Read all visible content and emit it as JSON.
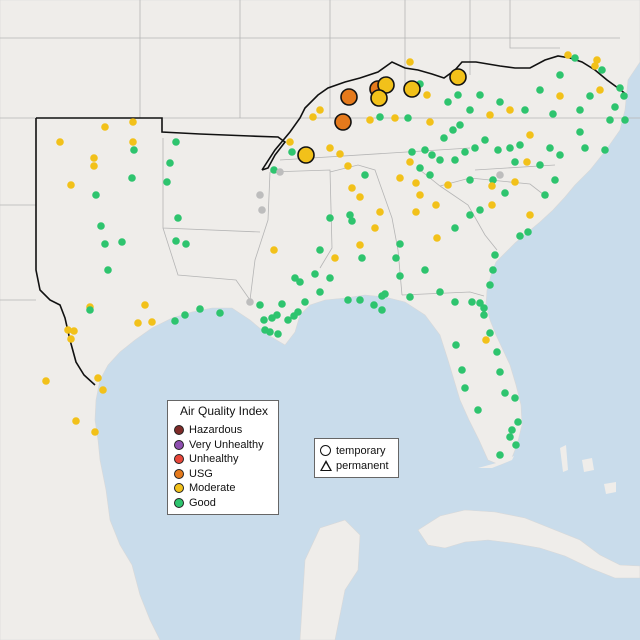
{
  "legend": {
    "title": "Air Quality Index",
    "categories": [
      {
        "label": "Hazardous",
        "color": "#7e2b28"
      },
      {
        "label": "Very Unhealthy",
        "color": "#8e4fb0"
      },
      {
        "label": "Unhealthy",
        "color": "#e8473a"
      },
      {
        "label": "USG",
        "color": "#e57a1c"
      },
      {
        "label": "Moderate",
        "color": "#f2c11a"
      },
      {
        "label": "Good",
        "color": "#2ec46e"
      }
    ],
    "monitor_types": [
      {
        "label": "temporary",
        "icon": "circle-icon"
      },
      {
        "label": "permanent",
        "icon": "triangle-icon"
      }
    ]
  },
  "colors": {
    "water": "#c9dceb",
    "land": "#efedea",
    "no_data_marker": "#bdbdbd",
    "region_border": "#111111",
    "state_border": "#b5b5b5"
  }
}
